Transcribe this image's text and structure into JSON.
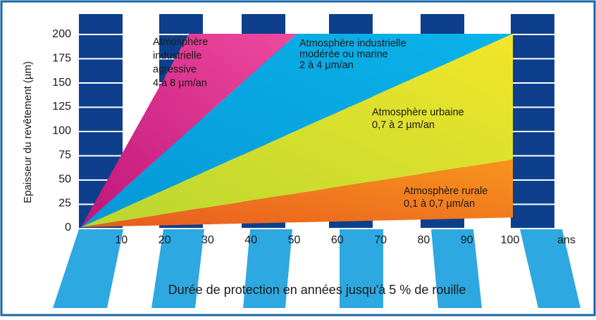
{
  "chart_data": {
    "type": "area",
    "ylabel": "Epaisseur du revêtement (µm)",
    "xlabel": "Durée de protection en années jusqu'à 5 % de rouille",
    "x_unit": "ans",
    "x_ticks": [
      "10",
      "20",
      "30",
      "40",
      "50",
      "60",
      "70",
      "80",
      "90",
      "100"
    ],
    "y_ticks": [
      "0",
      "25",
      "50",
      "75",
      "100",
      "125",
      "150",
      "175",
      "200"
    ],
    "xlim": [
      0,
      100
    ],
    "ylim": [
      0,
      200
    ],
    "series": [
      {
        "name": "Atmosphère industrielle agressive",
        "label_lines": [
          "Atmosphère",
          "industrielle",
          "agressive",
          "4 à 8 µm/an"
        ],
        "rate_high": 8,
        "rate_low": 4,
        "color_start": "#c0157a",
        "color_end": "#ee4a9e"
      },
      {
        "name": "Atmosphère industrielle modérée ou marine",
        "label_lines": [
          "Atmosphère industrielle",
          "modérée ou marine",
          "2 à 4 µm/an"
        ],
        "rate_high": 4,
        "rate_low": 2,
        "color_start": "#0597d6",
        "color_end": "#0bb3ea"
      },
      {
        "name": "Atmosphère urbaine",
        "label_lines": [
          "Atmosphère urbaine",
          "0,7 à 2 µm/an"
        ],
        "rate_high": 2,
        "rate_low": 0.7,
        "color_start": "#b8d630",
        "color_end": "#f2e62a"
      },
      {
        "name": "Atmosphère rurale",
        "label_lines": [
          "Atmosphère rurale",
          "0,1 à 0,7 µm/an"
        ],
        "rate_high": 0.7,
        "rate_low": 0.1,
        "color_start": "#e85a1e",
        "color_end": "#f7951d"
      }
    ],
    "grid": false,
    "legend": "inline labels"
  },
  "colors": {
    "frame_border": "#1a66a8",
    "bar_dark": "#0d3f8c",
    "stripe_light": "#2ea8e0",
    "text": "#1a1a1a"
  }
}
